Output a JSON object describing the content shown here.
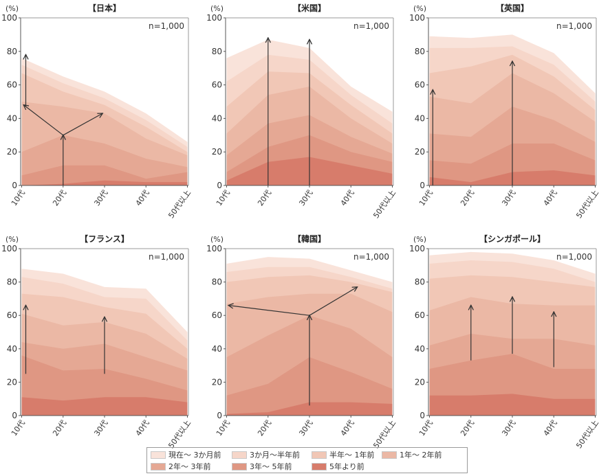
{
  "layers": [
    {
      "label": "現在～3か月前",
      "color": "#f9e3da"
    },
    {
      "label": "3か月～半年前",
      "color": "#f6d6c9"
    },
    {
      "label": "半年～1年前",
      "color": "#f1c7b6"
    },
    {
      "label": "1年～2年前",
      "color": "#ebb8a5"
    },
    {
      "label": "2年～3年前",
      "color": "#e5a894"
    },
    {
      "label": "3年～5年前",
      "color": "#df9783"
    },
    {
      "label": "5年より前",
      "color": "#d77c6b"
    }
  ],
  "legend": [
    "現在～ 3か月前",
    "3か月～半年前",
    "半年～ 1年前",
    "1年～ 2年前",
    "2年～ 3年前",
    "3年～ 5年前",
    "5年より前"
  ],
  "chart_data": [
    {
      "type": "area",
      "stacked": true,
      "title": "【日本】",
      "ylabel": "(%)",
      "note": "n=1,000",
      "ylim": [
        0,
        100
      ],
      "categories": [
        "10代",
        "20代",
        "30代",
        "40代",
        "50代以上"
      ],
      "yticks": [
        "0",
        "20",
        "40",
        "60",
        "80",
        "100"
      ],
      "cumulative_boundaries": [
        [
          76,
          65,
          56,
          43,
          26
        ],
        [
          72,
          61,
          52,
          39,
          23
        ],
        [
          67,
          56,
          48,
          35,
          20
        ],
        [
          50,
          47,
          43,
          28,
          18
        ],
        [
          20,
          30,
          25,
          16,
          11
        ],
        [
          6,
          12,
          12,
          4,
          8
        ],
        [
          0,
          1,
          3,
          2,
          2
        ]
      ],
      "arrows": [
        {
          "from": [
            0.1,
            47
          ],
          "to": [
            0.1,
            78
          ]
        },
        {
          "from": [
            1,
            0
          ],
          "to": [
            1,
            30
          ]
        },
        {
          "from": [
            1,
            30
          ],
          "to": [
            0.05,
            48
          ]
        },
        {
          "from": [
            1,
            30
          ],
          "to": [
            1.95,
            43
          ]
        }
      ]
    },
    {
      "type": "area",
      "stacked": true,
      "title": "【米国】",
      "ylabel": "(%)",
      "note": "n=1,000",
      "ylim": [
        0,
        100
      ],
      "categories": [
        "10代",
        "20代",
        "30代",
        "40代",
        "50代以上"
      ],
      "yticks": [
        "0",
        "20",
        "40",
        "60",
        "80",
        "100"
      ],
      "cumulative_boundaries": [
        [
          76,
          87,
          82,
          59,
          44
        ],
        [
          62,
          78,
          75,
          54,
          37
        ],
        [
          47,
          68,
          67,
          48,
          31
        ],
        [
          31,
          54,
          59,
          40,
          25
        ],
        [
          18,
          37,
          42,
          29,
          19
        ],
        [
          8,
          23,
          30,
          20,
          14
        ],
        [
          3,
          14,
          17,
          12,
          7
        ]
      ],
      "arrows": [
        {
          "from": [
            1,
            0
          ],
          "to": [
            1,
            88
          ]
        },
        {
          "from": [
            2,
            0
          ],
          "to": [
            2,
            87
          ]
        }
      ]
    },
    {
      "type": "area",
      "stacked": true,
      "title": "【英国】",
      "ylabel": "(%)",
      "note": "n=1,000",
      "ylim": [
        0,
        100
      ],
      "categories": [
        "10代",
        "20代",
        "30代",
        "40代",
        "50代以上"
      ],
      "yticks": [
        "0",
        "20",
        "40",
        "60",
        "80",
        "100"
      ],
      "cumulative_boundaries": [
        [
          89,
          88,
          90,
          79,
          55
        ],
        [
          82,
          82,
          83,
          72,
          50
        ],
        [
          67,
          71,
          78,
          65,
          45
        ],
        [
          53,
          49,
          67,
          55,
          38
        ],
        [
          31,
          29,
          47,
          39,
          26
        ],
        [
          15,
          13,
          25,
          25,
          15
        ],
        [
          5,
          2,
          8,
          9,
          6
        ]
      ],
      "arrows": [
        {
          "from": [
            0.08,
            0
          ],
          "to": [
            0.08,
            57
          ]
        },
        {
          "from": [
            2,
            0
          ],
          "to": [
            2,
            74
          ]
        }
      ]
    },
    {
      "type": "area",
      "stacked": true,
      "title": "【フランス】",
      "ylabel": "(%)",
      "note": "n=1,000",
      "ylim": [
        0,
        100
      ],
      "categories": [
        "10代",
        "20代",
        "30代",
        "40代",
        "50代以上"
      ],
      "yticks": [
        "0",
        "20",
        "40",
        "60",
        "80",
        "100"
      ],
      "cumulative_boundaries": [
        [
          88,
          85,
          77,
          76,
          50
        ],
        [
          83,
          79,
          71,
          70,
          45
        ],
        [
          73,
          71,
          65,
          61,
          40
        ],
        [
          61,
          54,
          56,
          49,
          34
        ],
        [
          44,
          40,
          43,
          35,
          27
        ],
        [
          36,
          27,
          28,
          22,
          15
        ],
        [
          11,
          9,
          11,
          11,
          8
        ]
      ],
      "arrows": [
        {
          "from": [
            0.1,
            25
          ],
          "to": [
            0.1,
            66
          ]
        },
        {
          "from": [
            2,
            25
          ],
          "to": [
            2,
            59
          ]
        }
      ]
    },
    {
      "type": "area",
      "stacked": true,
      "title": "【韓国】",
      "ylabel": "(%)",
      "note": "n=1,000",
      "ylim": [
        0,
        100
      ],
      "categories": [
        "10代",
        "20代",
        "30代",
        "40代",
        "50代以上"
      ],
      "yticks": [
        "0",
        "20",
        "40",
        "60",
        "80",
        "100"
      ],
      "cumulative_boundaries": [
        [
          91,
          95,
          94,
          87,
          80
        ],
        [
          86,
          89,
          89,
          83,
          76
        ],
        [
          80,
          83,
          84,
          80,
          74
        ],
        [
          67,
          71,
          73,
          73,
          62
        ],
        [
          35,
          48,
          60,
          52,
          35
        ],
        [
          12,
          19,
          35,
          26,
          16
        ],
        [
          1,
          2,
          8,
          8,
          7
        ]
      ],
      "arrows": [
        {
          "from": [
            2,
            6
          ],
          "to": [
            2,
            60
          ]
        },
        {
          "from": [
            2,
            60
          ],
          "to": [
            0.05,
            66
          ]
        },
        {
          "from": [
            2,
            60
          ],
          "to": [
            3.15,
            77
          ]
        }
      ]
    },
    {
      "type": "area",
      "stacked": true,
      "title": "【シンガポール】",
      "ylabel": "(%)",
      "note": "n=1,000",
      "ylim": [
        0,
        100
      ],
      "categories": [
        "10代",
        "20代",
        "30代",
        "40代",
        "50代以上"
      ],
      "yticks": [
        "0",
        "20",
        "40",
        "60",
        "80",
        "100"
      ],
      "cumulative_boundaries": [
        [
          96,
          98,
          97,
          93,
          85
        ],
        [
          91,
          93,
          92,
          88,
          80
        ],
        [
          82,
          84,
          83,
          80,
          77
        ],
        [
          63,
          71,
          67,
          66,
          66
        ],
        [
          42,
          49,
          46,
          46,
          42
        ],
        [
          28,
          33,
          37,
          28,
          28
        ],
        [
          12,
          12,
          13,
          10,
          10
        ]
      ],
      "arrows": [
        {
          "from": [
            1,
            33
          ],
          "to": [
            1,
            66
          ]
        },
        {
          "from": [
            2,
            37
          ],
          "to": [
            2,
            71
          ]
        },
        {
          "from": [
            3,
            29
          ],
          "to": [
            3,
            62
          ]
        }
      ]
    }
  ]
}
